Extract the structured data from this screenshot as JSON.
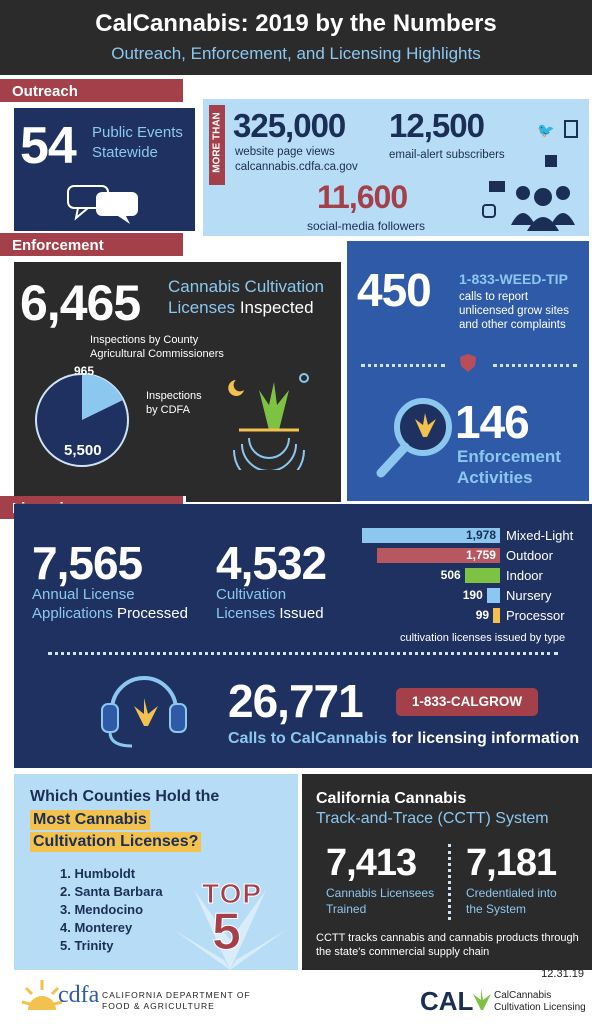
{
  "header": {
    "title": "CalCannabis: 2019 by the Numbers",
    "subtitle": "Outreach, Enforcement, and Licensing Highlights"
  },
  "outreach": {
    "tab": "Outreach",
    "events_number": "54",
    "events_label_1": "Public Events",
    "events_label_2": "Statewide",
    "more_than": "MORE THAN",
    "page_views_number": "325,000",
    "page_views_label": "website page views",
    "page_views_site": "calcannabis.cdfa.ca.gov",
    "email_number": "12,500",
    "email_label": "email-alert subscribers",
    "social_number": "11,600",
    "social_label": "social-media followers"
  },
  "enforcement": {
    "tab": "Enforcement",
    "inspected_number": "6,465",
    "inspected_label_1": "Cannabis Cultivation",
    "inspected_label_2a": "Licenses",
    "inspected_label_2b": " Inspected",
    "county_note_1": "Inspections by County",
    "county_note_2": "Agricultural Commissioners",
    "county_value": "965",
    "cdfa_note_1": "Inspections",
    "cdfa_note_2": "by CDFA",
    "cdfa_value": "5,500",
    "tip_number": "450",
    "tip_line": "1-833-WEED-TIP",
    "tip_desc_1": "calls to report",
    "tip_desc_2": "unlicensed grow sites",
    "tip_desc_3": "and other complaints",
    "activities_number": "146",
    "activities_label_1": "Enforcement",
    "activities_label_2": "Activities"
  },
  "licensing": {
    "tab": "Licensing",
    "applications_number": "7,565",
    "applications_label_1": "Annual License",
    "applications_label_2a": "Applications",
    "applications_label_2b": " Processed",
    "issued_number": "4,532",
    "issued_label_1": "Cultivation",
    "issued_label_2a": "Licenses",
    "issued_label_2b": " Issued",
    "chart_caption": "cultivation licenses issued by type",
    "calls_number": "26,771",
    "calls_label_a": "Calls to CalCannabis",
    "calls_label_b": " for licensing information",
    "calgrow": "1-833-CALGROW"
  },
  "chart_data": {
    "type": "bar",
    "categories": [
      "Mixed-Light",
      "Outdoor",
      "Indoor",
      "Nursery",
      "Processor"
    ],
    "values": [
      1978,
      1759,
      506,
      190,
      99
    ],
    "labels": [
      "1,978",
      "1,759",
      "506",
      "190",
      "99"
    ],
    "colors": [
      "#8cc7f0",
      "#b85760",
      "#7dc243",
      "#8cc7f0",
      "#f2c14e"
    ]
  },
  "counties": {
    "title_1": "Which Counties Hold the",
    "title_2": "Most Cannabis",
    "title_3": "Cultivation Licenses?",
    "list": [
      "1. Humboldt",
      "2. Santa Barbara",
      "3. Mendocino",
      "4. Monterey",
      "5. Trinity"
    ],
    "top_word": "TOP",
    "top_number": "5"
  },
  "ccts": {
    "title_1": "California Cannabis",
    "title_2": "Track-and-Trace (CCTT) System",
    "trained_number": "7,413",
    "trained_label_1": "Cannabis Licensees",
    "trained_label_2": "Trained",
    "credentialed_number": "7,181",
    "credentialed_label_1": "Credentialed into",
    "credentialed_label_2": "the System",
    "desc_1": "CCTT tracks cannabis and cannabis products through",
    "desc_2": "the state's commercial supply chain"
  },
  "footer": {
    "date": "12.31.19",
    "cdfa_logo": "cdfa",
    "cdfa_name_1": "CALIFORNIA DEPARTMENT OF",
    "cdfa_name_2": "FOOD & AGRICULTURE",
    "cal_logo": "CAL",
    "cal_name_1": "CalCannabis",
    "cal_name_2": "Cultivation Licensing"
  }
}
